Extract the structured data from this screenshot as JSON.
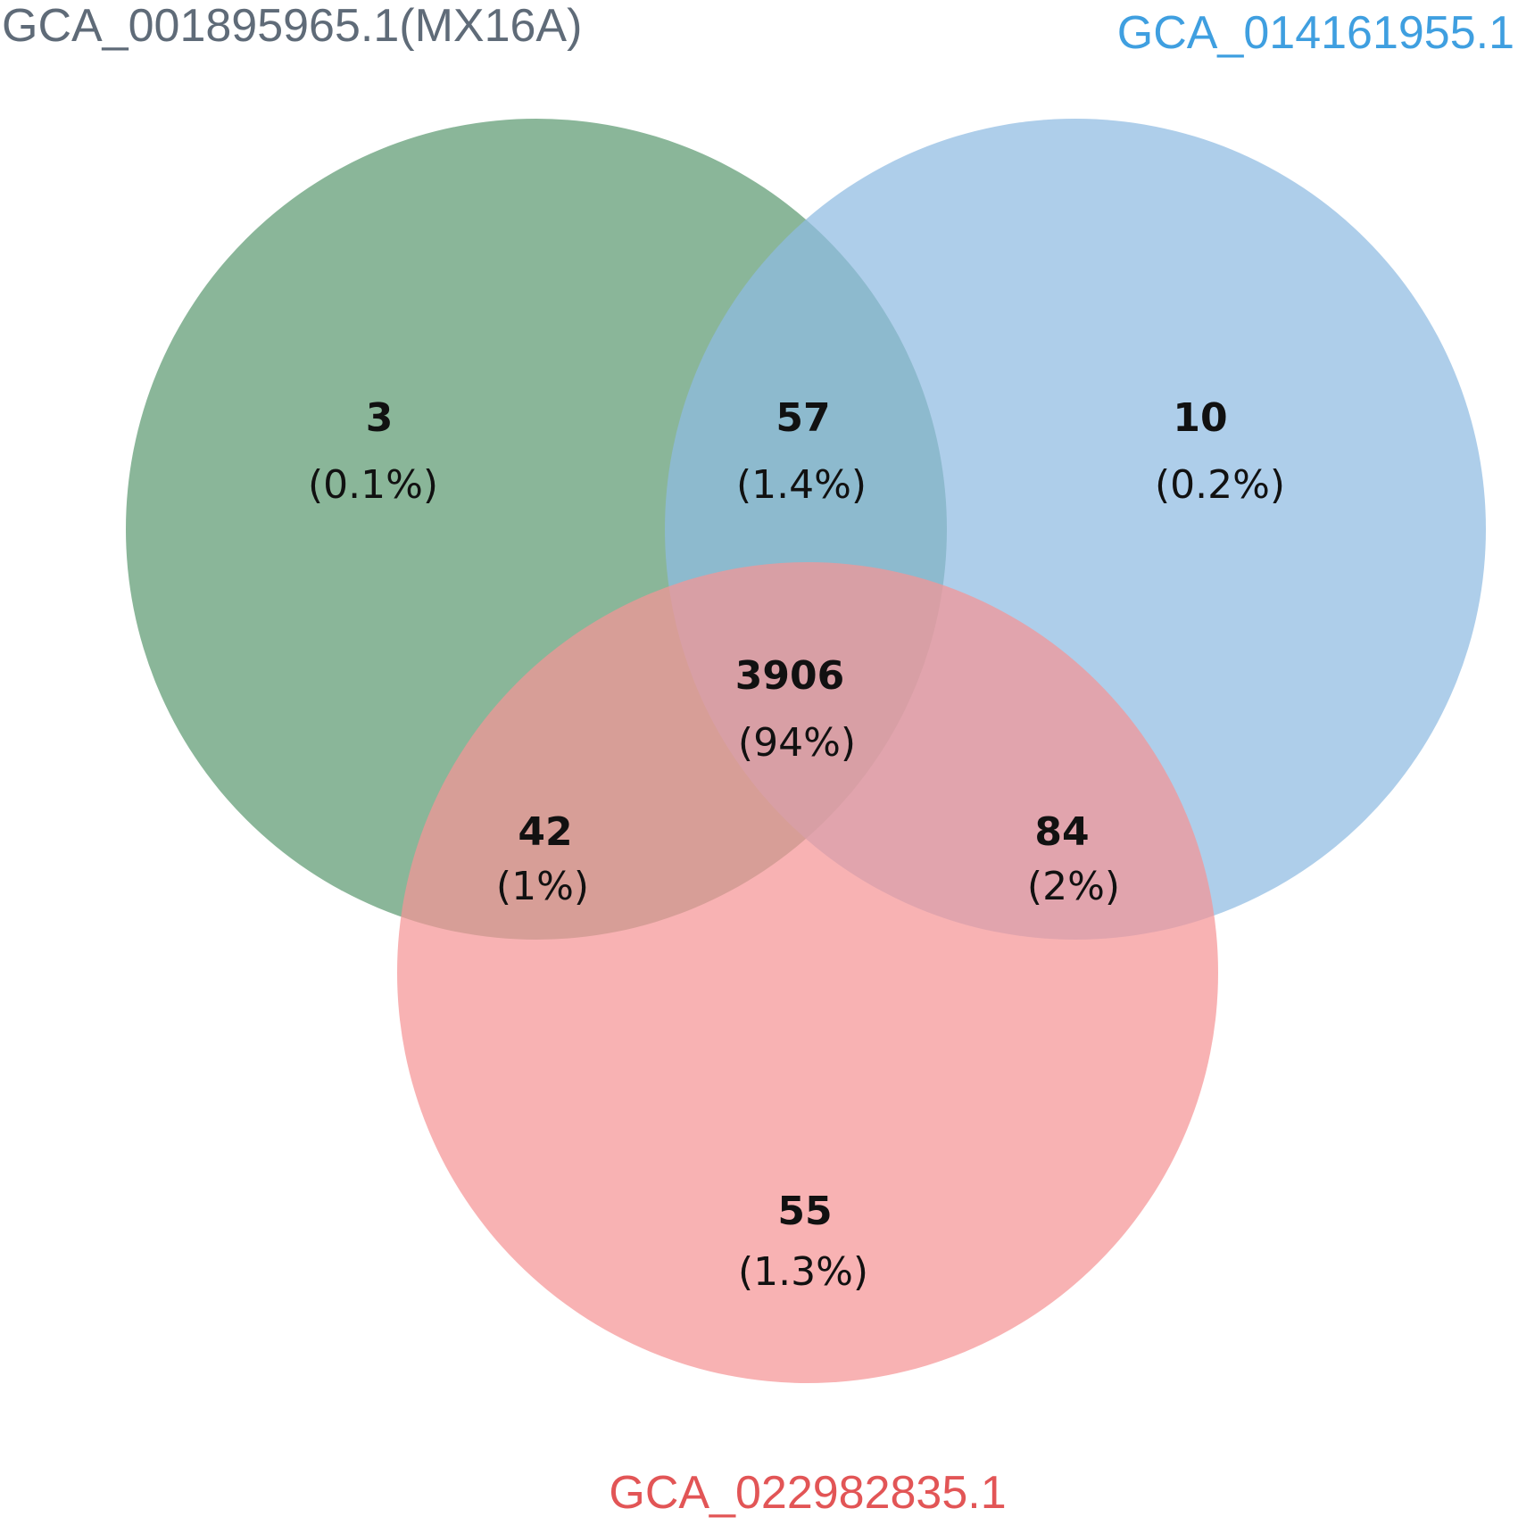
{
  "chart_data": {
    "type": "venn",
    "sets": [
      {
        "name": "GCA_001895965.1(MX16A)",
        "color": "#5d9a72",
        "label_color": "#5f6b78"
      },
      {
        "name": "GCA_014161955.1",
        "color": "#8fbbe2",
        "label_color": "#3f9fe0"
      },
      {
        "name": "GCA_022982835.1",
        "color": "#f59496",
        "label_color": "#e25556"
      }
    ],
    "regions": [
      {
        "id": "A_only",
        "sets": [
          "GCA_001895965.1(MX16A)"
        ],
        "count": "3",
        "percent": "(0.1%)"
      },
      {
        "id": "AB",
        "sets": [
          "GCA_001895965.1(MX16A)",
          "GCA_014161955.1"
        ],
        "count": "57",
        "percent": "(1.4%)"
      },
      {
        "id": "B_only",
        "sets": [
          "GCA_014161955.1"
        ],
        "count": "10",
        "percent": "(0.2%)"
      },
      {
        "id": "ABC",
        "sets": [
          "GCA_001895965.1(MX16A)",
          "GCA_014161955.1",
          "GCA_022982835.1"
        ],
        "count": "3906",
        "percent": "(94%)"
      },
      {
        "id": "AC",
        "sets": [
          "GCA_001895965.1(MX16A)",
          "GCA_022982835.1"
        ],
        "count": "42",
        "percent": "(1%)"
      },
      {
        "id": "BC",
        "sets": [
          "GCA_014161955.1",
          "GCA_022982835.1"
        ],
        "count": "84",
        "percent": "(2%)"
      },
      {
        "id": "C_only",
        "sets": [
          "GCA_022982835.1"
        ],
        "count": "55",
        "percent": "(1.3%)"
      }
    ]
  }
}
